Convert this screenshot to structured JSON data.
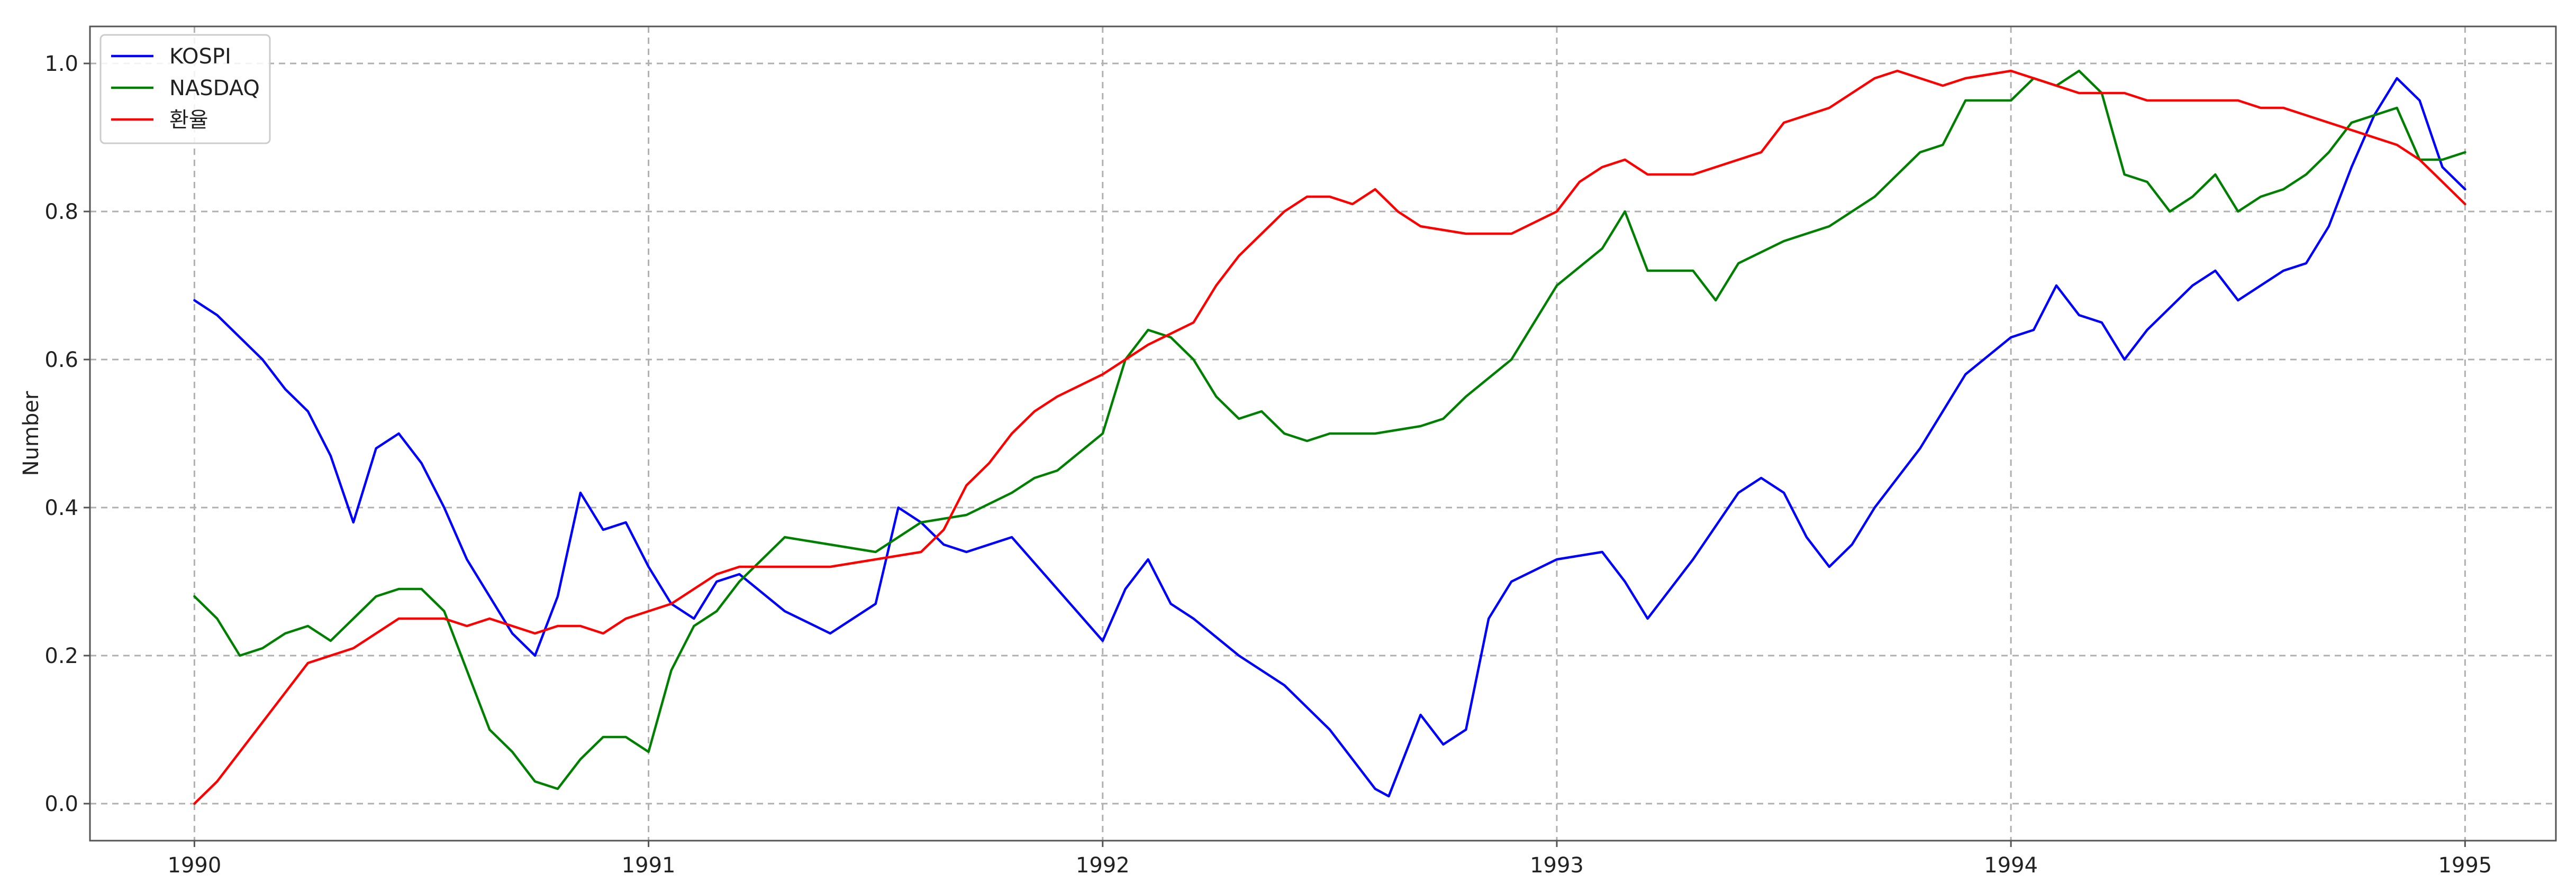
{
  "chart_data": {
    "type": "line",
    "xlabel": "",
    "ylabel": "Number",
    "xlim": [
      1989.77,
      1995.2
    ],
    "ylim": [
      -0.05,
      1.05
    ],
    "x_ticks": [
      "1990",
      "1991",
      "1992",
      "1993",
      "1994",
      "1995"
    ],
    "y_ticks": [
      "0.0",
      "0.2",
      "0.4",
      "0.6",
      "0.8",
      "1.0"
    ],
    "grid": true,
    "legend_position": "top-left",
    "series": [
      {
        "name": "KOSPI",
        "color": "#0000ff",
        "x": [
          1990.0,
          1990.05,
          1990.1,
          1990.15,
          1990.2,
          1990.25,
          1990.3,
          1990.35,
          1990.4,
          1990.45,
          1990.5,
          1990.55,
          1990.6,
          1990.65,
          1990.7,
          1990.75,
          1990.8,
          1990.85,
          1990.9,
          1990.95,
          1991.0,
          1991.05,
          1991.1,
          1991.15,
          1991.2,
          1991.3,
          1991.4,
          1991.5,
          1991.55,
          1991.6,
          1991.65,
          1991.7,
          1991.8,
          1991.9,
          1992.0,
          1992.05,
          1992.1,
          1992.15,
          1992.2,
          1992.3,
          1992.4,
          1992.5,
          1992.55,
          1992.6,
          1992.63,
          1992.7,
          1992.75,
          1992.8,
          1992.85,
          1992.9,
          1993.0,
          1993.1,
          1993.15,
          1993.2,
          1993.3,
          1993.4,
          1993.45,
          1993.5,
          1993.55,
          1993.6,
          1993.65,
          1993.7,
          1993.8,
          1993.9,
          1994.0,
          1994.05,
          1994.1,
          1994.15,
          1994.2,
          1994.25,
          1994.3,
          1994.4,
          1994.45,
          1994.5,
          1994.6,
          1994.65,
          1994.7,
          1994.75,
          1994.8,
          1994.85,
          1994.9,
          1994.95,
          1995.0
        ],
        "values": [
          0.68,
          0.66,
          0.63,
          0.6,
          0.56,
          0.53,
          0.47,
          0.38,
          0.48,
          0.5,
          0.46,
          0.4,
          0.33,
          0.28,
          0.23,
          0.2,
          0.28,
          0.42,
          0.37,
          0.38,
          0.32,
          0.27,
          0.25,
          0.3,
          0.31,
          0.26,
          0.23,
          0.27,
          0.4,
          0.38,
          0.35,
          0.34,
          0.36,
          0.29,
          0.22,
          0.29,
          0.33,
          0.27,
          0.25,
          0.2,
          0.16,
          0.1,
          0.06,
          0.02,
          0.01,
          0.12,
          0.08,
          0.1,
          0.25,
          0.3,
          0.33,
          0.34,
          0.3,
          0.25,
          0.33,
          0.42,
          0.44,
          0.42,
          0.36,
          0.32,
          0.35,
          0.4,
          0.48,
          0.58,
          0.63,
          0.64,
          0.7,
          0.66,
          0.65,
          0.6,
          0.64,
          0.7,
          0.72,
          0.68,
          0.72,
          0.73,
          0.78,
          0.86,
          0.93,
          0.98,
          0.95,
          0.86,
          0.83
        ]
      },
      {
        "name": "NASDAQ",
        "color": "#008000",
        "x": [
          1990.0,
          1990.05,
          1990.1,
          1990.15,
          1990.2,
          1990.25,
          1990.3,
          1990.35,
          1990.4,
          1990.45,
          1990.5,
          1990.55,
          1990.6,
          1990.65,
          1990.7,
          1990.75,
          1990.8,
          1990.85,
          1990.9,
          1990.95,
          1991.0,
          1991.05,
          1991.1,
          1991.15,
          1991.2,
          1991.3,
          1991.4,
          1991.5,
          1991.6,
          1991.7,
          1991.8,
          1991.85,
          1991.9,
          1992.0,
          1992.05,
          1992.1,
          1992.15,
          1992.2,
          1992.25,
          1992.3,
          1992.35,
          1992.4,
          1992.45,
          1992.5,
          1992.6,
          1992.7,
          1992.75,
          1992.8,
          1992.9,
          1993.0,
          1993.1,
          1993.15,
          1993.2,
          1993.3,
          1993.35,
          1993.4,
          1993.5,
          1993.6,
          1993.7,
          1993.8,
          1993.85,
          1993.9,
          1994.0,
          1994.05,
          1994.1,
          1994.15,
          1994.2,
          1994.25,
          1994.3,
          1994.35,
          1994.4,
          1994.45,
          1994.5,
          1994.55,
          1994.6,
          1994.65,
          1994.7,
          1994.75,
          1994.8,
          1994.85,
          1994.9,
          1994.95,
          1995.0
        ],
        "values": [
          0.28,
          0.25,
          0.2,
          0.21,
          0.23,
          0.24,
          0.22,
          0.25,
          0.28,
          0.29,
          0.29,
          0.26,
          0.18,
          0.1,
          0.07,
          0.03,
          0.02,
          0.06,
          0.09,
          0.09,
          0.07,
          0.18,
          0.24,
          0.26,
          0.3,
          0.36,
          0.35,
          0.34,
          0.38,
          0.39,
          0.42,
          0.44,
          0.45,
          0.5,
          0.6,
          0.64,
          0.63,
          0.6,
          0.55,
          0.52,
          0.53,
          0.5,
          0.49,
          0.5,
          0.5,
          0.51,
          0.52,
          0.55,
          0.6,
          0.7,
          0.75,
          0.8,
          0.72,
          0.72,
          0.68,
          0.73,
          0.76,
          0.78,
          0.82,
          0.88,
          0.89,
          0.95,
          0.95,
          0.98,
          0.97,
          0.99,
          0.96,
          0.85,
          0.84,
          0.8,
          0.82,
          0.85,
          0.8,
          0.82,
          0.83,
          0.85,
          0.88,
          0.92,
          0.93,
          0.94,
          0.87,
          0.87,
          0.88
        ]
      },
      {
        "name": "환율",
        "color": "#ff0000",
        "x": [
          1990.0,
          1990.05,
          1990.1,
          1990.15,
          1990.2,
          1990.25,
          1990.3,
          1990.35,
          1990.4,
          1990.45,
          1990.5,
          1990.55,
          1990.6,
          1990.65,
          1990.7,
          1990.75,
          1990.8,
          1990.85,
          1990.9,
          1990.95,
          1991.0,
          1991.05,
          1991.1,
          1991.15,
          1991.2,
          1991.3,
          1991.4,
          1991.5,
          1991.6,
          1991.65,
          1991.7,
          1991.75,
          1991.8,
          1991.85,
          1991.9,
          1992.0,
          1992.1,
          1992.2,
          1992.25,
          1992.3,
          1992.35,
          1992.4,
          1992.45,
          1992.5,
          1992.55,
          1992.6,
          1992.65,
          1992.7,
          1992.8,
          1992.9,
          1993.0,
          1993.05,
          1993.1,
          1993.15,
          1993.2,
          1993.3,
          1993.4,
          1993.45,
          1993.5,
          1993.6,
          1993.65,
          1993.7,
          1993.75,
          1993.8,
          1993.85,
          1993.9,
          1994.0,
          1994.05,
          1994.1,
          1994.15,
          1994.2,
          1994.25,
          1994.3,
          1994.4,
          1994.5,
          1994.55,
          1994.6,
          1994.65,
          1994.7,
          1994.75,
          1994.8,
          1994.85,
          1994.9,
          1994.95,
          1995.0
        ],
        "values": [
          0.0,
          0.03,
          0.07,
          0.11,
          0.15,
          0.19,
          0.2,
          0.21,
          0.23,
          0.25,
          0.25,
          0.25,
          0.24,
          0.25,
          0.24,
          0.23,
          0.24,
          0.24,
          0.23,
          0.25,
          0.26,
          0.27,
          0.29,
          0.31,
          0.32,
          0.32,
          0.32,
          0.33,
          0.34,
          0.37,
          0.43,
          0.46,
          0.5,
          0.53,
          0.55,
          0.58,
          0.62,
          0.65,
          0.7,
          0.74,
          0.77,
          0.8,
          0.82,
          0.82,
          0.81,
          0.83,
          0.8,
          0.78,
          0.77,
          0.77,
          0.8,
          0.84,
          0.86,
          0.87,
          0.85,
          0.85,
          0.87,
          0.88,
          0.92,
          0.94,
          0.96,
          0.98,
          0.99,
          0.98,
          0.97,
          0.98,
          0.99,
          0.98,
          0.97,
          0.96,
          0.96,
          0.96,
          0.95,
          0.95,
          0.95,
          0.94,
          0.94,
          0.93,
          0.92,
          0.91,
          0.9,
          0.89,
          0.87,
          0.84,
          0.81
        ]
      }
    ]
  }
}
